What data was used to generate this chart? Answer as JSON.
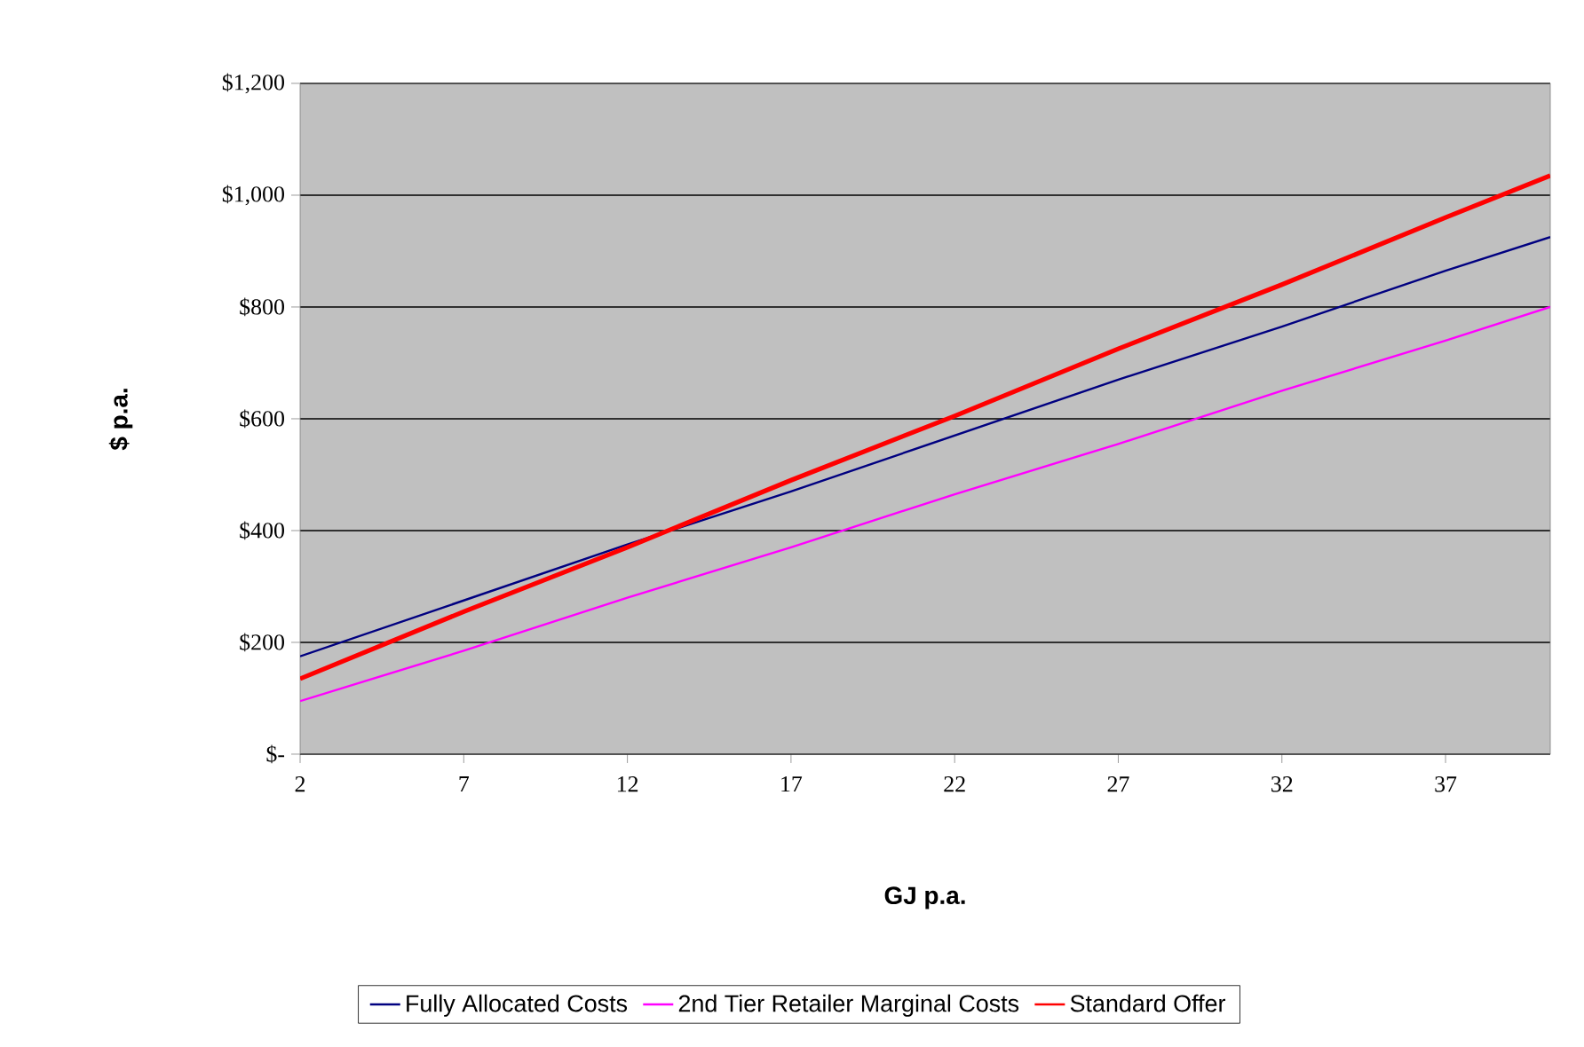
{
  "chart_data": {
    "type": "line",
    "xlabel": "GJ p.a.",
    "ylabel": "$ p.a.",
    "x": [
      2,
      7,
      12,
      17,
      22,
      27,
      32,
      37,
      40.2
    ],
    "xlim": [
      2,
      40.2
    ],
    "xticks": [
      2,
      7,
      12,
      17,
      22,
      27,
      32,
      37
    ],
    "ylim": [
      0,
      1200
    ],
    "yticks": [
      {
        "value": 0,
        "label": "$-"
      },
      {
        "value": 200,
        "label": "$200"
      },
      {
        "value": 400,
        "label": "$400"
      },
      {
        "value": 600,
        "label": "$600"
      },
      {
        "value": 800,
        "label": "$800"
      },
      {
        "value": 1000,
        "label": "$1,000"
      },
      {
        "value": 1200,
        "label": "$1,200"
      }
    ],
    "series": [
      {
        "name": "Fully Allocated Costs",
        "color": "#000080",
        "values": [
          175,
          275,
          375,
          470,
          570,
          670,
          765,
          865,
          925
        ]
      },
      {
        "name": "2nd Tier Retailer Marginal Costs",
        "color": "#ff00ff",
        "values": [
          95,
          185,
          280,
          370,
          465,
          555,
          650,
          740,
          800
        ]
      },
      {
        "name": "Standard Offer",
        "color": "#ff0000",
        "values": [
          135,
          255,
          370,
          490,
          605,
          725,
          840,
          960,
          1035
        ]
      }
    ],
    "grid": "y",
    "legend": "bottom",
    "marker": "none",
    "line_style": "solid"
  }
}
